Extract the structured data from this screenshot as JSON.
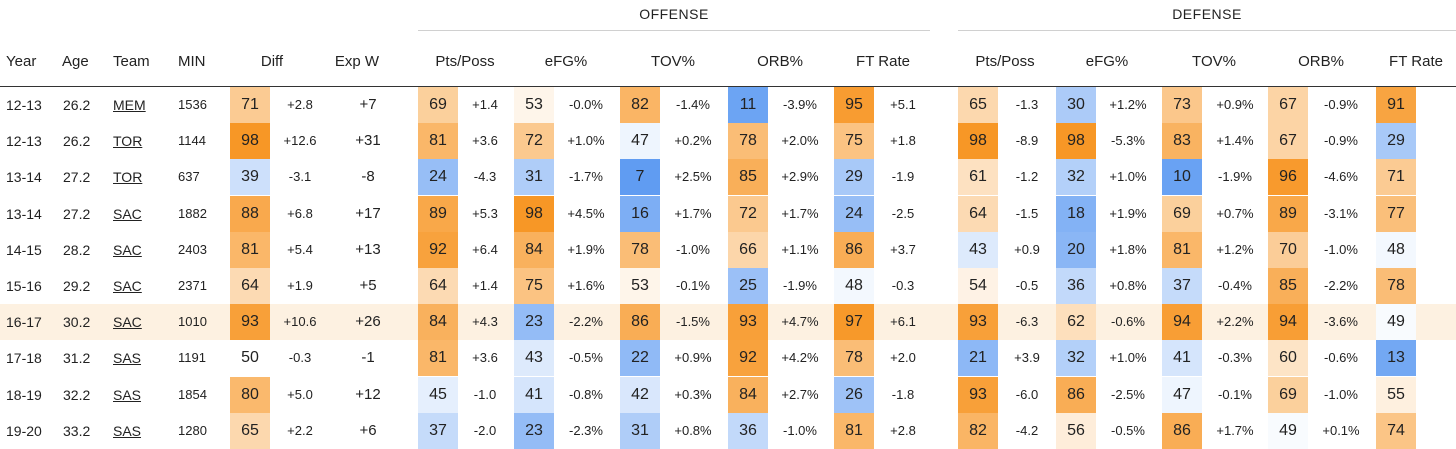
{
  "groups": {
    "offense": "OFFENSE",
    "defense": "DEFENSE"
  },
  "columns": {
    "year": "Year",
    "age": "Age",
    "team": "Team",
    "min": "MIN",
    "diff": "Diff",
    "exp_w": "Exp W",
    "off_pts": "Pts/Poss",
    "off_efg": "eFG%",
    "off_tov": "TOV%",
    "off_orb": "ORB%",
    "off_ft": "FT Rate",
    "def_pts": "Pts/Poss",
    "def_efg": "eFG%",
    "def_tov": "TOV%",
    "def_orb": "ORB%",
    "def_ft": "FT Rate"
  },
  "colors": {
    "orange_high": "#f7931e",
    "blue_low": "#4a8ef0",
    "neutral": "#ffffff",
    "highlight_row": "#fdf1e1"
  },
  "rows": [
    {
      "year": "12-13",
      "age": "26.2",
      "team": "MEM",
      "min": "1536",
      "highlight": false,
      "diff": {
        "pct": 71,
        "val": "+2.8"
      },
      "exp_w": "+7",
      "cells": [
        {
          "pct": 69,
          "val": "+1.4"
        },
        {
          "pct": 53,
          "val": "-0.0%"
        },
        {
          "pct": 82,
          "val": "-1.4%"
        },
        {
          "pct": 11,
          "val": "-3.9%"
        },
        {
          "pct": 95,
          "val": "+5.1"
        },
        {
          "pct": 65,
          "val": "-1.3"
        },
        {
          "pct": 30,
          "val": "+1.2%"
        },
        {
          "pct": 73,
          "val": "+0.9%"
        },
        {
          "pct": 67,
          "val": "-0.9%"
        },
        {
          "pct": 91,
          "val": ""
        }
      ]
    },
    {
      "year": "12-13",
      "age": "26.2",
      "team": "TOR",
      "min": "1144",
      "highlight": false,
      "diff": {
        "pct": 98,
        "val": "+12.6"
      },
      "exp_w": "+31",
      "cells": [
        {
          "pct": 81,
          "val": "+3.6"
        },
        {
          "pct": 72,
          "val": "+1.0%"
        },
        {
          "pct": 47,
          "val": "+0.2%"
        },
        {
          "pct": 78,
          "val": "+2.0%"
        },
        {
          "pct": 75,
          "val": "+1.8"
        },
        {
          "pct": 98,
          "val": "-8.9"
        },
        {
          "pct": 98,
          "val": "-5.3%"
        },
        {
          "pct": 83,
          "val": "+1.4%"
        },
        {
          "pct": 67,
          "val": "-0.9%"
        },
        {
          "pct": 29,
          "val": ""
        }
      ]
    },
    {
      "year": "13-14",
      "age": "27.2",
      "team": "TOR",
      "min": "637",
      "highlight": false,
      "diff": {
        "pct": 39,
        "val": "-3.1"
      },
      "exp_w": "-8",
      "cells": [
        {
          "pct": 24,
          "val": "-4.3"
        },
        {
          "pct": 31,
          "val": "-1.7%"
        },
        {
          "pct": 7,
          "val": "+2.5%"
        },
        {
          "pct": 85,
          "val": "+2.9%"
        },
        {
          "pct": 29,
          "val": "-1.9"
        },
        {
          "pct": 61,
          "val": "-1.2"
        },
        {
          "pct": 32,
          "val": "+1.0%"
        },
        {
          "pct": 10,
          "val": "-1.9%"
        },
        {
          "pct": 96,
          "val": "-4.6%"
        },
        {
          "pct": 71,
          "val": ""
        }
      ]
    },
    {
      "year": "13-14",
      "age": "27.2",
      "team": "SAC",
      "min": "1882",
      "highlight": false,
      "diff": {
        "pct": 88,
        "val": "+6.8"
      },
      "exp_w": "+17",
      "cells": [
        {
          "pct": 89,
          "val": "+5.3"
        },
        {
          "pct": 98,
          "val": "+4.5%"
        },
        {
          "pct": 16,
          "val": "+1.7%"
        },
        {
          "pct": 72,
          "val": "+1.7%"
        },
        {
          "pct": 24,
          "val": "-2.5"
        },
        {
          "pct": 64,
          "val": "-1.5"
        },
        {
          "pct": 18,
          "val": "+1.9%"
        },
        {
          "pct": 69,
          "val": "+0.7%"
        },
        {
          "pct": 89,
          "val": "-3.1%"
        },
        {
          "pct": 77,
          "val": ""
        }
      ]
    },
    {
      "year": "14-15",
      "age": "28.2",
      "team": "SAC",
      "min": "2403",
      "highlight": false,
      "diff": {
        "pct": 81,
        "val": "+5.4"
      },
      "exp_w": "+13",
      "cells": [
        {
          "pct": 92,
          "val": "+6.4"
        },
        {
          "pct": 84,
          "val": "+1.9%"
        },
        {
          "pct": 78,
          "val": "-1.0%"
        },
        {
          "pct": 66,
          "val": "+1.1%"
        },
        {
          "pct": 86,
          "val": "+3.7"
        },
        {
          "pct": 43,
          "val": "+0.9"
        },
        {
          "pct": 20,
          "val": "+1.8%"
        },
        {
          "pct": 81,
          "val": "+1.2%"
        },
        {
          "pct": 70,
          "val": "-1.0%"
        },
        {
          "pct": 48,
          "val": ""
        }
      ]
    },
    {
      "year": "15-16",
      "age": "29.2",
      "team": "SAC",
      "min": "2371",
      "highlight": false,
      "diff": {
        "pct": 64,
        "val": "+1.9"
      },
      "exp_w": "+5",
      "cells": [
        {
          "pct": 64,
          "val": "+1.4"
        },
        {
          "pct": 75,
          "val": "+1.6%"
        },
        {
          "pct": 53,
          "val": "-0.1%"
        },
        {
          "pct": 25,
          "val": "-1.9%"
        },
        {
          "pct": 48,
          "val": "-0.3"
        },
        {
          "pct": 54,
          "val": "-0.5"
        },
        {
          "pct": 36,
          "val": "+0.8%"
        },
        {
          "pct": 37,
          "val": "-0.4%"
        },
        {
          "pct": 85,
          "val": "-2.2%"
        },
        {
          "pct": 78,
          "val": ""
        }
      ]
    },
    {
      "year": "16-17",
      "age": "30.2",
      "team": "SAC",
      "min": "1010",
      "highlight": true,
      "diff": {
        "pct": 93,
        "val": "+10.6"
      },
      "exp_w": "+26",
      "cells": [
        {
          "pct": 84,
          "val": "+4.3"
        },
        {
          "pct": 23,
          "val": "-2.2%"
        },
        {
          "pct": 86,
          "val": "-1.5%"
        },
        {
          "pct": 93,
          "val": "+4.7%"
        },
        {
          "pct": 97,
          "val": "+6.1"
        },
        {
          "pct": 93,
          "val": "-6.3"
        },
        {
          "pct": 62,
          "val": "-0.6%"
        },
        {
          "pct": 94,
          "val": "+2.2%"
        },
        {
          "pct": 94,
          "val": "-3.6%"
        },
        {
          "pct": 49,
          "val": ""
        }
      ]
    },
    {
      "year": "17-18",
      "age": "31.2",
      "team": "SAS",
      "min": "1191",
      "highlight": false,
      "diff": {
        "pct": 50,
        "val": "-0.3"
      },
      "exp_w": "-1",
      "cells": [
        {
          "pct": 81,
          "val": "+3.6"
        },
        {
          "pct": 43,
          "val": "-0.5%"
        },
        {
          "pct": 22,
          "val": "+0.9%"
        },
        {
          "pct": 92,
          "val": "+4.2%"
        },
        {
          "pct": 78,
          "val": "+2.0"
        },
        {
          "pct": 21,
          "val": "+3.9"
        },
        {
          "pct": 32,
          "val": "+1.0%"
        },
        {
          "pct": 41,
          "val": "-0.3%"
        },
        {
          "pct": 60,
          "val": "-0.6%"
        },
        {
          "pct": 13,
          "val": ""
        }
      ]
    },
    {
      "year": "18-19",
      "age": "32.2",
      "team": "SAS",
      "min": "1854",
      "highlight": false,
      "diff": {
        "pct": 80,
        "val": "+5.0"
      },
      "exp_w": "+12",
      "cells": [
        {
          "pct": 45,
          "val": "-1.0"
        },
        {
          "pct": 41,
          "val": "-0.8%"
        },
        {
          "pct": 42,
          "val": "+0.3%"
        },
        {
          "pct": 84,
          "val": "+2.7%"
        },
        {
          "pct": 26,
          "val": "-1.8"
        },
        {
          "pct": 93,
          "val": "-6.0"
        },
        {
          "pct": 86,
          "val": "-2.5%"
        },
        {
          "pct": 47,
          "val": "-0.1%"
        },
        {
          "pct": 69,
          "val": "-1.0%"
        },
        {
          "pct": 55,
          "val": ""
        }
      ]
    },
    {
      "year": "19-20",
      "age": "33.2",
      "team": "SAS",
      "min": "1280",
      "highlight": false,
      "diff": {
        "pct": 65,
        "val": "+2.2"
      },
      "exp_w": "+6",
      "cells": [
        {
          "pct": 37,
          "val": "-2.0"
        },
        {
          "pct": 23,
          "val": "-2.3%"
        },
        {
          "pct": 31,
          "val": "+0.8%"
        },
        {
          "pct": 36,
          "val": "-1.0%"
        },
        {
          "pct": 81,
          "val": "+2.8"
        },
        {
          "pct": 82,
          "val": "-4.2"
        },
        {
          "pct": 56,
          "val": "-0.5%"
        },
        {
          "pct": 86,
          "val": "+1.7%"
        },
        {
          "pct": 49,
          "val": "+0.1%"
        },
        {
          "pct": 74,
          "val": ""
        }
      ]
    }
  ]
}
